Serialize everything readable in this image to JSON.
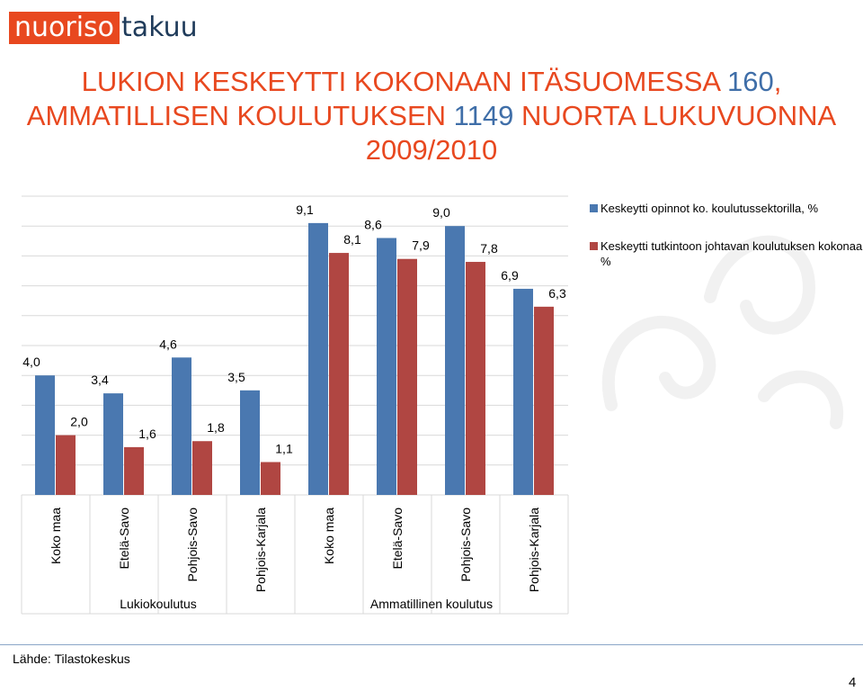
{
  "logo": {
    "part1": "nuoriso",
    "part2": "takuu"
  },
  "title": {
    "line1_text": "LUKION KESKEYTTI KOKONAAN ITÄSUOMESSA ",
    "line1_num": "160",
    "line1_end": ",",
    "line2_text": "AMMATILLISEN KOULUTUKSEN ",
    "line2_num": "1149",
    "line2_end": " NUORTA LUKUVUONNA",
    "line3": "2009/2010"
  },
  "source": "Lähde: Tilastokeskus",
  "page_number": "4",
  "colors": {
    "blue": "#4a78b0",
    "red": "#b04642",
    "title": "#e8481f",
    "title_num": "#3f6ea8"
  },
  "chart_data": {
    "type": "bar",
    "categories": [
      "Koko maa",
      "Etelä-Savo",
      "Pohjois-Savo",
      "Pohjois-Karjala",
      "Koko maa",
      "Etelä-Savo",
      "Pohjois-Savo",
      "Pohjois-Karjala"
    ],
    "value_labels": {
      "Keskeytti opinnot ko. koulutussektorilla, %": [
        "4,0",
        "3,4",
        "4,6",
        "3,5",
        "9,1",
        "8,6",
        "9,0",
        "6,9"
      ],
      "Keskeytti tutkintoon johtavan koulutuksen kokonaan, %": [
        "2,0",
        "1,6",
        "1,8",
        "1,1",
        "8,1",
        "7,9",
        "7,8",
        "6,3"
      ]
    },
    "groups": [
      {
        "label": "Lukiokoulutus",
        "categories": [
          0,
          1,
          2,
          3
        ]
      },
      {
        "label": "Ammatillinen koulutus",
        "categories": [
          4,
          5,
          6,
          7
        ]
      }
    ],
    "series": [
      {
        "name": "Keskeytti opinnot ko. koulutussektorilla, %",
        "color": "#4a78b0",
        "values": [
          4.0,
          3.4,
          4.6,
          3.5,
          9.1,
          8.6,
          9.0,
          6.9
        ]
      },
      {
        "name": "Keskeytti tutkintoon johtavan koulutuksen kokonaan, %",
        "color": "#b04642",
        "values": [
          2.0,
          1.6,
          1.8,
          1.1,
          8.1,
          7.9,
          7.8,
          6.3
        ]
      }
    ],
    "ylim": [
      0,
      10
    ],
    "grid": true,
    "legend": "right"
  }
}
